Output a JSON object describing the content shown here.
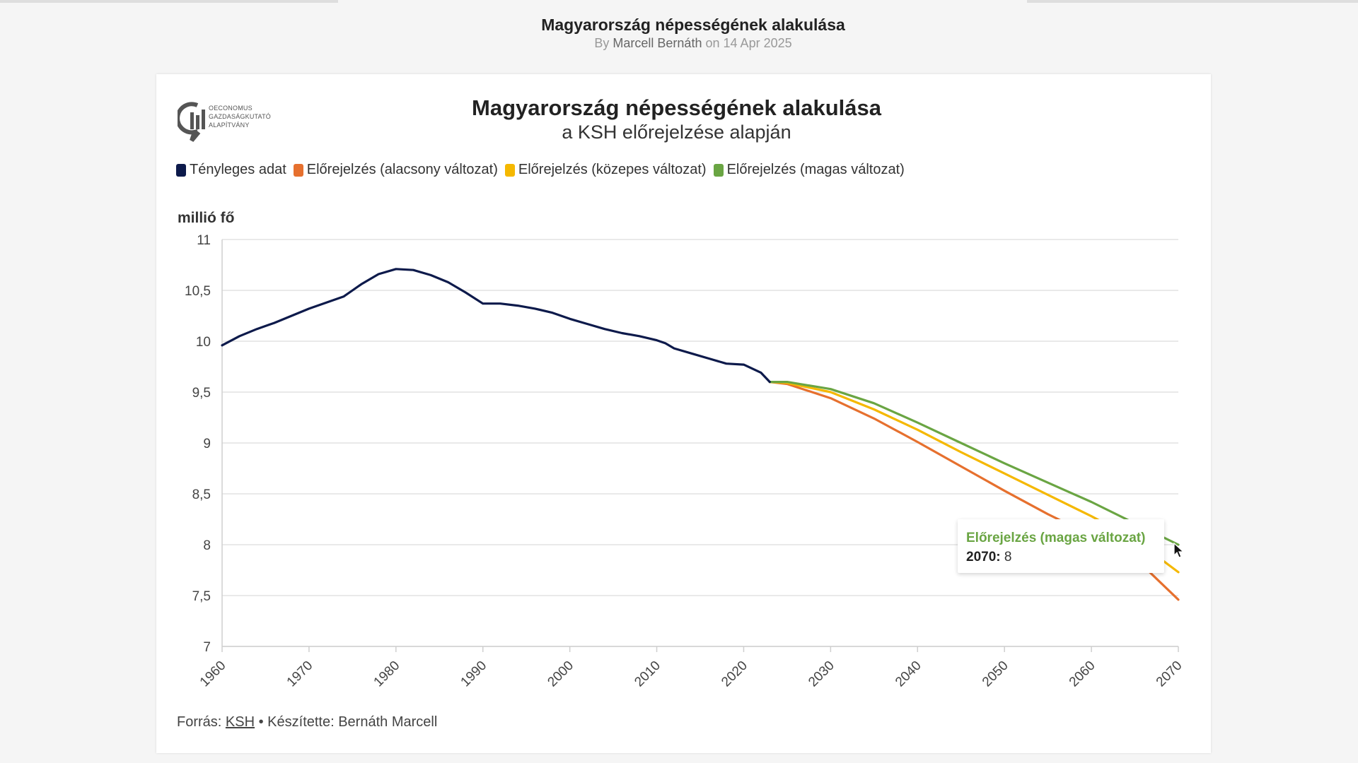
{
  "page": {
    "title": "Magyarország népességének alakulása",
    "byline_prefix": "By",
    "author": "Marcell Bernáth",
    "byline_on": "on",
    "date": "14 Apr 2025"
  },
  "logo": {
    "icon": "oeconomus-logo-icon",
    "text": [
      "OECONOMUS",
      "GAZDASÁGKUTATÓ",
      "ALAPÍTVÁNY"
    ]
  },
  "footer": {
    "source_label": "Forrás:",
    "source_link": "KSH",
    "separator": "•",
    "made_by": "Készítette: Bernáth Marcell"
  },
  "tooltip": {
    "series": "Előrejelzés (magas változat)",
    "year": "2070:",
    "value": "8"
  },
  "chart_data": {
    "type": "line",
    "title": "Magyarország népességének alakulása",
    "subtitle": "a KSH előrejelzése alapján",
    "ylabel": "millió fő",
    "xlabel": "",
    "xlim": [
      1960,
      2070
    ],
    "ylim": [
      7,
      11
    ],
    "grid": true,
    "legend_position": "top-left",
    "x_ticks": [
      1960,
      1970,
      1980,
      1990,
      2000,
      2010,
      2020,
      2030,
      2040,
      2050,
      2060,
      2070
    ],
    "y_ticks": [
      7,
      7.5,
      8,
      8.5,
      9,
      9.5,
      10,
      10.5,
      11
    ],
    "y_tick_labels": [
      "7",
      "7,5",
      "8",
      "8,5",
      "9",
      "9,5",
      "10",
      "10,5",
      "11"
    ],
    "series": [
      {
        "name": "Tényleges adat",
        "color": "#0d1a4b",
        "points": [
          [
            1960,
            9.96
          ],
          [
            1962,
            10.05
          ],
          [
            1964,
            10.12
          ],
          [
            1966,
            10.18
          ],
          [
            1968,
            10.25
          ],
          [
            1970,
            10.32
          ],
          [
            1972,
            10.38
          ],
          [
            1974,
            10.44
          ],
          [
            1975,
            10.5
          ],
          [
            1976,
            10.56
          ],
          [
            1978,
            10.66
          ],
          [
            1980,
            10.71
          ],
          [
            1982,
            10.7
          ],
          [
            1984,
            10.65
          ],
          [
            1986,
            10.58
          ],
          [
            1988,
            10.48
          ],
          [
            1990,
            10.37
          ],
          [
            1992,
            10.37
          ],
          [
            1994,
            10.35
          ],
          [
            1996,
            10.32
          ],
          [
            1998,
            10.28
          ],
          [
            2000,
            10.22
          ],
          [
            2002,
            10.17
          ],
          [
            2004,
            10.12
          ],
          [
            2006,
            10.08
          ],
          [
            2008,
            10.05
          ],
          [
            2010,
            10.01
          ],
          [
            2011,
            9.98
          ],
          [
            2012,
            9.93
          ],
          [
            2014,
            9.88
          ],
          [
            2016,
            9.83
          ],
          [
            2018,
            9.78
          ],
          [
            2020,
            9.77
          ],
          [
            2022,
            9.69
          ],
          [
            2023,
            9.6
          ]
        ]
      },
      {
        "name": "Előrejelzés (alacsony változat)",
        "color": "#e6702e",
        "points": [
          [
            2023,
            9.6
          ],
          [
            2025,
            9.58
          ],
          [
            2030,
            9.44
          ],
          [
            2035,
            9.24
          ],
          [
            2040,
            9.01
          ],
          [
            2045,
            8.77
          ],
          [
            2050,
            8.53
          ],
          [
            2055,
            8.3
          ],
          [
            2060,
            8.09
          ],
          [
            2065,
            7.87
          ],
          [
            2070,
            7.46
          ]
        ]
      },
      {
        "name": "Előrejelzés (közepes változat)",
        "color": "#f5b800",
        "points": [
          [
            2023,
            9.6
          ],
          [
            2025,
            9.59
          ],
          [
            2030,
            9.5
          ],
          [
            2035,
            9.33
          ],
          [
            2040,
            9.13
          ],
          [
            2045,
            8.91
          ],
          [
            2050,
            8.7
          ],
          [
            2055,
            8.49
          ],
          [
            2060,
            8.28
          ],
          [
            2065,
            8.05
          ],
          [
            2070,
            7.73
          ]
        ]
      },
      {
        "name": "Előrejelzés (magas változat)",
        "color": "#6aa543",
        "points": [
          [
            2023,
            9.6
          ],
          [
            2025,
            9.6
          ],
          [
            2030,
            9.53
          ],
          [
            2035,
            9.39
          ],
          [
            2040,
            9.2
          ],
          [
            2045,
            9.0
          ],
          [
            2050,
            8.8
          ],
          [
            2055,
            8.61
          ],
          [
            2060,
            8.42
          ],
          [
            2065,
            8.21
          ],
          [
            2070,
            8.0
          ]
        ]
      }
    ]
  }
}
